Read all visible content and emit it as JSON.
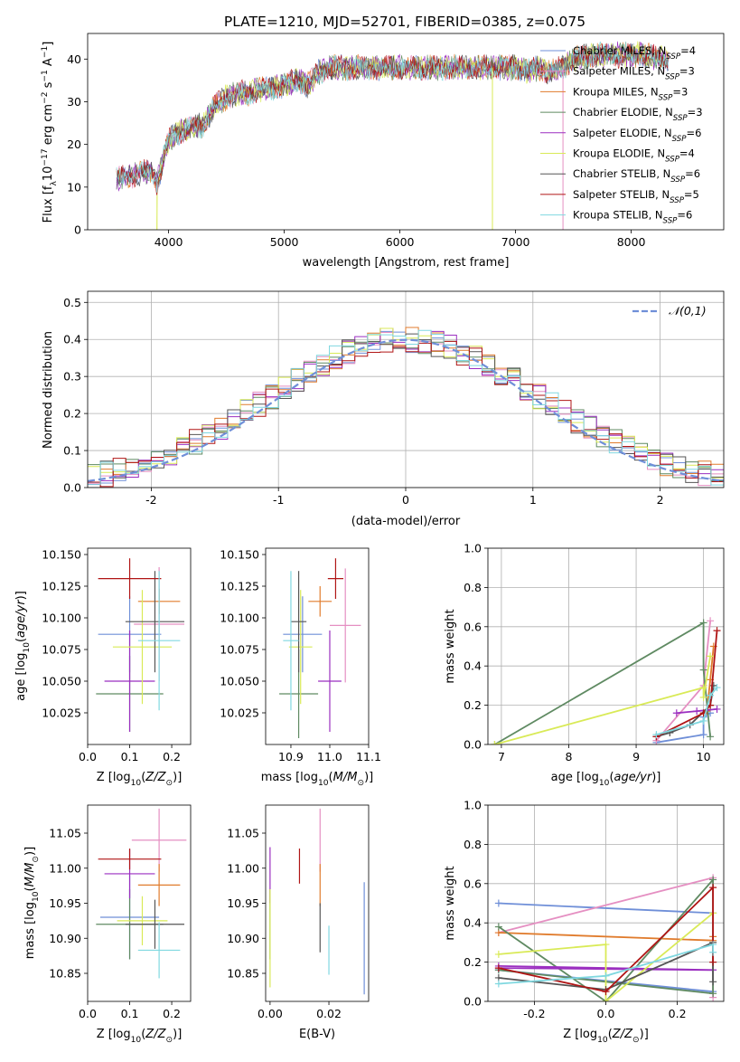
{
  "figure_title": "PLATE=1210, MJD=52701, FIBERID=0385, z=0.075",
  "colors": {
    "Chabrier MILES": "#6f8fd8",
    "Salpeter MILES": "#e58fc2",
    "Kroupa MILES": "#e07b2c",
    "Chabrier ELODIE": "#5f8a62",
    "Salpeter ELODIE": "#9b2fc0",
    "Kroupa ELODIE": "#d9ea57",
    "Chabrier STELIB": "#555555",
    "Salpeter STELIB": "#b01515",
    "Kroupa STELIB": "#80d8e0"
  },
  "chart_data": [
    {
      "id": "spectrum",
      "type": "line",
      "title": "PLATE=1210, MJD=52701, FIBERID=0385, z=0.075",
      "xlabel": "wavelength [Angstrom, rest frame]",
      "ylabel": "Flux [f_λ10^-17 erg cm^-2 s^-1 A^-1]",
      "xlim": [
        3300,
        8800
      ],
      "ylim": [
        0,
        46
      ],
      "xticks": [
        4000,
        5000,
        6000,
        7000,
        8000
      ],
      "yticks": [
        0,
        10,
        20,
        30,
        40
      ],
      "grid": false,
      "legend_position": "top-right",
      "series": [
        {
          "name": "Chabrier MILES",
          "label_main": "Chabrier MILES, N",
          "label_sub": "SSP",
          "label_end": "=4"
        },
        {
          "name": "Salpeter MILES",
          "label_main": "Salpeter MILES, N",
          "label_sub": "SSP",
          "label_end": "=3"
        },
        {
          "name": "Kroupa MILES",
          "label_main": "Kroupa MILES, N",
          "label_sub": "SSP",
          "label_end": "=3"
        },
        {
          "name": "Chabrier ELODIE",
          "label_main": "Chabrier ELODIE, N",
          "label_sub": "SSP",
          "label_end": "=3"
        },
        {
          "name": "Salpeter ELODIE",
          "label_main": "Salpeter ELODIE, N",
          "label_sub": "SSP",
          "label_end": "=6"
        },
        {
          "name": "Kroupa ELODIE",
          "label_main": "Kroupa ELODIE, N",
          "label_sub": "SSP",
          "label_end": "=4"
        },
        {
          "name": "Chabrier STELIB",
          "label_main": "Chabrier STELIB, N",
          "label_sub": "SSP",
          "label_end": "=6"
        },
        {
          "name": "Salpeter STELIB",
          "label_main": "Salpeter STELIB, N",
          "label_sub": "SSP",
          "label_end": "=5"
        },
        {
          "name": "Kroupa STELIB",
          "label_main": "Kroupa STELIB, N",
          "label_sub": "SSP",
          "label_end": "=6"
        }
      ],
      "continuum": [
        [
          3550,
          12
        ],
        [
          3650,
          12.5
        ],
        [
          3750,
          13
        ],
        [
          3850,
          14
        ],
        [
          3900,
          11
        ],
        [
          3950,
          16
        ],
        [
          4000,
          21
        ],
        [
          4100,
          23
        ],
        [
          4200,
          24
        ],
        [
          4300,
          24.5
        ],
        [
          4400,
          29
        ],
        [
          4500,
          31
        ],
        [
          4600,
          32
        ],
        [
          4700,
          32
        ],
        [
          4800,
          33
        ],
        [
          4900,
          33
        ],
        [
          5000,
          34
        ],
        [
          5100,
          35
        ],
        [
          5200,
          34
        ],
        [
          5300,
          37
        ],
        [
          5400,
          38
        ],
        [
          5500,
          38
        ],
        [
          5600,
          38
        ],
        [
          5700,
          38
        ],
        [
          5800,
          38
        ],
        [
          5900,
          38
        ],
        [
          6000,
          38
        ],
        [
          6100,
          38
        ],
        [
          6200,
          38
        ],
        [
          6300,
          38
        ],
        [
          6400,
          38
        ],
        [
          6500,
          38
        ],
        [
          6600,
          38
        ],
        [
          6700,
          38
        ],
        [
          6800,
          38
        ],
        [
          6900,
          38
        ],
        [
          7000,
          38
        ],
        [
          7100,
          37
        ],
        [
          7200,
          38
        ],
        [
          7300,
          37
        ],
        [
          7400,
          38
        ],
        [
          7500,
          40
        ],
        [
          7700,
          41
        ],
        [
          7900,
          41
        ],
        [
          8100,
          41
        ],
        [
          8300,
          40
        ]
      ],
      "cutoffs": [
        {
          "series": "Kroupa ELODIE",
          "x_from": 3900,
          "x_to": 6800
        },
        {
          "series": "Salpeter MILES",
          "x_from": 3550,
          "x_to": 7410
        }
      ]
    },
    {
      "id": "residuals",
      "type": "line",
      "xlabel": "(data-model)/error",
      "ylabel": "Normed distribution",
      "xlim": [
        -2.5,
        2.5
      ],
      "ylim": [
        0,
        0.53
      ],
      "xticks": [
        -2,
        -1,
        0,
        1,
        2
      ],
      "yticks": [
        0.0,
        0.1,
        0.2,
        0.3,
        0.4,
        0.5
      ],
      "grid": true,
      "legend_position": "top-right",
      "reference_label": "𝒩(0,1)",
      "reference_mean": 0,
      "reference_sigma": 1,
      "bin_width": 0.1,
      "x_start": -2.5
    },
    {
      "id": "age_vs_Z",
      "type": "errorbar",
      "xlabel": "Z [log10(Z/Z⊙)]",
      "ylabel": "age  [log10(age/yr)]",
      "xlim": [
        0.0,
        0.245
      ],
      "ylim": [
        10.0,
        10.155
      ],
      "xticks": [
        0.0,
        0.1,
        0.2
      ],
      "yticks": [
        10.025,
        10.05,
        10.075,
        10.1,
        10.125,
        10.15
      ],
      "points": [
        {
          "series": "Chabrier MILES",
          "x": 0.1,
          "xerr": 0.075,
          "y": 10.087,
          "yerr": 0.03
        },
        {
          "series": "Salpeter MILES",
          "x": 0.17,
          "xerr": 0.06,
          "y": 10.095,
          "yerr": 0.045
        },
        {
          "series": "Kroupa MILES",
          "x": 0.17,
          "xerr": 0.05,
          "y": 10.113,
          "yerr": 0.01
        },
        {
          "series": "Chabrier ELODIE",
          "x": 0.1,
          "xerr": 0.08,
          "y": 10.04,
          "yerr": 0.03
        },
        {
          "series": "Salpeter ELODIE",
          "x": 0.1,
          "xerr": 0.06,
          "y": 10.05,
          "yerr": 0.04
        },
        {
          "series": "Kroupa ELODIE",
          "x": 0.13,
          "xerr": 0.07,
          "y": 10.077,
          "yerr": 0.045
        },
        {
          "series": "Chabrier STELIB",
          "x": 0.16,
          "xerr": 0.07,
          "y": 10.097,
          "yerr": 0.04
        },
        {
          "series": "Salpeter STELIB",
          "x": 0.1,
          "xerr": 0.075,
          "y": 10.131,
          "yerr": 0.016
        },
        {
          "series": "Kroupa STELIB",
          "x": 0.17,
          "xerr": 0.05,
          "y": 10.082,
          "yerr": 0.055
        }
      ]
    },
    {
      "id": "age_vs_mass",
      "type": "errorbar",
      "xlabel": "mass [log10(M/M⊙)]",
      "ylabel": "",
      "xlim": [
        10.835,
        11.1
      ],
      "ylim": [
        10.0,
        10.155
      ],
      "xticks": [
        10.9,
        11.0,
        11.1
      ],
      "yticks": [
        10.025,
        10.05,
        10.075,
        10.1,
        10.125,
        10.15
      ],
      "points": [
        {
          "series": "Chabrier MILES",
          "x": 10.93,
          "xerr": 0.05,
          "y": 10.087,
          "yerr": 0.03
        },
        {
          "series": "Salpeter MILES",
          "x": 11.04,
          "xerr": 0.04,
          "y": 10.094,
          "yerr": 0.045
        },
        {
          "series": "Kroupa MILES",
          "x": 10.975,
          "xerr": 0.03,
          "y": 10.113,
          "yerr": 0.012
        },
        {
          "series": "Chabrier ELODIE",
          "x": 10.92,
          "xerr": 0.05,
          "y": 10.04,
          "yerr": 0.035
        },
        {
          "series": "Salpeter ELODIE",
          "x": 11.0,
          "xerr": 0.03,
          "y": 10.05,
          "yerr": 0.04
        },
        {
          "series": "Kroupa ELODIE",
          "x": 10.925,
          "xerr": 0.03,
          "y": 10.077,
          "yerr": 0.045
        },
        {
          "series": "Chabrier STELIB",
          "x": 10.92,
          "xerr": 0.02,
          "y": 10.097,
          "yerr": 0.04
        },
        {
          "series": "Salpeter STELIB",
          "x": 11.015,
          "xerr": 0.02,
          "y": 10.131,
          "yerr": 0.016
        },
        {
          "series": "Kroupa STELIB",
          "x": 10.9,
          "xerr": 0.02,
          "y": 10.082,
          "yerr": 0.055
        }
      ]
    },
    {
      "id": "massweight_vs_age",
      "type": "line",
      "xlabel": "age  [log10(age/yr)]",
      "ylabel": "mass weight",
      "xlim": [
        6.8,
        10.3
      ],
      "ylim": [
        0.0,
        1.0
      ],
      "xticks": [
        7,
        8,
        9,
        10
      ],
      "yticks": [
        0.0,
        0.2,
        0.4,
        0.6,
        0.8,
        1.0
      ],
      "grid": true,
      "series": [
        {
          "series": "Chabrier MILES",
          "points": [
            [
              9.3,
              0.01
            ],
            [
              10.0,
              0.05
            ],
            [
              10.0,
              0.14
            ],
            [
              10.1,
              0.16
            ]
          ]
        },
        {
          "series": "Salpeter MILES",
          "points": [
            [
              9.3,
              0.02
            ],
            [
              10.0,
              0.3
            ],
            [
              10.1,
              0.63
            ]
          ]
        },
        {
          "series": "Kroupa MILES",
          "points": [
            [
              10.05,
              0.17
            ],
            [
              10.1,
              0.33
            ],
            [
              10.15,
              0.5
            ]
          ]
        },
        {
          "series": "Chabrier ELODIE",
          "points": [
            [
              6.9,
              0.0
            ],
            [
              10.0,
              0.62
            ],
            [
              10.0,
              0.38
            ],
            [
              10.1,
              0.04
            ]
          ]
        },
        {
          "series": "Salpeter ELODIE",
          "points": [
            [
              9.6,
              0.16
            ],
            [
              9.9,
              0.17
            ],
            [
              10.2,
              0.18
            ]
          ]
        },
        {
          "series": "Kroupa ELODIE",
          "points": [
            [
              6.9,
              0.0
            ],
            [
              10.0,
              0.29
            ],
            [
              10.0,
              0.24
            ],
            [
              10.1,
              0.45
            ]
          ]
        },
        {
          "series": "Chabrier STELIB",
          "points": [
            [
              9.3,
              0.04
            ],
            [
              9.5,
              0.06
            ],
            [
              9.8,
              0.1
            ],
            [
              10.1,
              0.2
            ],
            [
              10.15,
              0.3
            ]
          ]
        },
        {
          "series": "Salpeter STELIB",
          "points": [
            [
              9.3,
              0.04
            ],
            [
              10.0,
              0.16
            ],
            [
              10.1,
              0.2
            ],
            [
              10.2,
              0.58
            ]
          ]
        },
        {
          "series": "Kroupa STELIB",
          "points": [
            [
              9.3,
              0.05
            ],
            [
              10.0,
              0.12
            ],
            [
              10.1,
              0.25
            ],
            [
              10.2,
              0.29
            ]
          ]
        }
      ]
    },
    {
      "id": "mass_vs_Z",
      "type": "errorbar",
      "xlabel": "Z [log10(Z/Z⊙)]",
      "ylabel": "mass [log10(M/M⊙)]",
      "xlim": [
        0.0,
        0.245
      ],
      "ylim": [
        10.81,
        11.09
      ],
      "xticks": [
        0.0,
        0.1,
        0.2
      ],
      "yticks": [
        10.85,
        10.9,
        10.95,
        11.0,
        11.05
      ],
      "points": [
        {
          "series": "Chabrier MILES",
          "x": 0.1,
          "xerr": 0.07,
          "y": 10.93,
          "yerr": 0.06
        },
        {
          "series": "Salpeter MILES",
          "x": 0.17,
          "xerr": 0.065,
          "y": 11.04,
          "yerr": 0.045
        },
        {
          "series": "Kroupa MILES",
          "x": 0.17,
          "xerr": 0.05,
          "y": 10.976,
          "yerr": 0.03
        },
        {
          "series": "Chabrier ELODIE",
          "x": 0.1,
          "xerr": 0.08,
          "y": 10.92,
          "yerr": 0.05
        },
        {
          "series": "Salpeter ELODIE",
          "x": 0.1,
          "xerr": 0.06,
          "y": 10.992,
          "yerr": 0.035
        },
        {
          "series": "Kroupa ELODIE",
          "x": 0.13,
          "xerr": 0.06,
          "y": 10.925,
          "yerr": 0.035
        },
        {
          "series": "Chabrier STELIB",
          "x": 0.16,
          "xerr": 0.07,
          "y": 10.92,
          "yerr": 0.035
        },
        {
          "series": "Salpeter STELIB",
          "x": 0.1,
          "xerr": 0.075,
          "y": 11.013,
          "yerr": 0.015
        },
        {
          "series": "Kroupa STELIB",
          "x": 0.17,
          "xerr": 0.05,
          "y": 10.883,
          "yerr": 0.04
        }
      ]
    },
    {
      "id": "mass_vs_EBV",
      "type": "errorbar",
      "xlabel": "E(B-V)",
      "ylabel": "",
      "xlim": [
        -0.0015,
        0.0335
      ],
      "ylim": [
        10.81,
        11.09
      ],
      "xticks": [
        0.0,
        0.02
      ],
      "xtick_labels": [
        "0.00",
        "0.02"
      ],
      "yticks": [
        10.85,
        10.9,
        10.95,
        11.0,
        11.05
      ],
      "points": [
        {
          "series": "Chabrier MILES",
          "x": 0.032,
          "y": 10.9,
          "yerr": 0.08
        },
        {
          "series": "Salpeter MILES",
          "x": 0.017,
          "y": 11.04,
          "yerr": 0.045
        },
        {
          "series": "Kroupa MILES",
          "x": 0.017,
          "y": 10.976,
          "yerr": 0.03
        },
        {
          "series": "Chabrier ELODIE",
          "x": 0.0,
          "y": 10.92,
          "yerr": 0.05
        },
        {
          "series": "Salpeter ELODIE",
          "x": 0.0,
          "y": 10.99,
          "yerr": 0.04
        },
        {
          "series": "Kroupa ELODIE",
          "x": 0.0,
          "y": 10.9,
          "yerr": 0.07
        },
        {
          "series": "Chabrier STELIB",
          "x": 0.017,
          "y": 10.915,
          "yerr": 0.035
        },
        {
          "series": "Salpeter STELIB",
          "x": 0.01,
          "y": 11.003,
          "yerr": 0.025
        },
        {
          "series": "Kroupa STELIB",
          "x": 0.02,
          "y": 10.883,
          "yerr": 0.035
        }
      ]
    },
    {
      "id": "massweight_vs_Z",
      "type": "line",
      "xlabel": "Z [log10(Z/Z⊙)]",
      "ylabel": "mass weight",
      "xlim": [
        -0.33,
        0.33
      ],
      "ylim": [
        0.0,
        1.0
      ],
      "xticks": [
        -0.2,
        0.0,
        0.2
      ],
      "yticks": [
        0.0,
        0.2,
        0.4,
        0.6,
        0.8,
        1.0
      ],
      "grid": true,
      "series": [
        {
          "series": "Chabrier MILES",
          "points": [
            [
              -0.3,
              0.5
            ],
            [
              0.3,
              0.45
            ],
            [
              0.3,
              0.05
            ],
            [
              -0.3,
              0.16
            ]
          ]
        },
        {
          "series": "Salpeter MILES",
          "points": [
            [
              -0.3,
              0.35
            ],
            [
              0.3,
              0.63
            ],
            [
              0.3,
              0.02
            ]
          ]
        },
        {
          "series": "Kroupa MILES",
          "points": [
            [
              -0.3,
              0.35
            ],
            [
              0.3,
              0.31
            ],
            [
              0.3,
              0.33
            ]
          ]
        },
        {
          "series": "Chabrier ELODIE",
          "points": [
            [
              -0.3,
              0.38
            ],
            [
              0.0,
              0.0
            ],
            [
              0.3,
              0.62
            ],
            [
              0.3,
              0.04
            ],
            [
              -0.3,
              0.16
            ]
          ]
        },
        {
          "series": "Salpeter ELODIE",
          "points": [
            [
              -0.3,
              0.17
            ],
            [
              0.3,
              0.16
            ],
            [
              -0.3,
              0.18
            ]
          ]
        },
        {
          "series": "Kroupa ELODIE",
          "points": [
            [
              -0.3,
              0.24
            ],
            [
              0.0,
              0.29
            ],
            [
              0.0,
              0.0
            ],
            [
              0.3,
              0.45
            ]
          ]
        },
        {
          "series": "Chabrier STELIB",
          "points": [
            [
              -0.3,
              0.12
            ],
            [
              0.0,
              0.06
            ],
            [
              0.3,
              0.3
            ],
            [
              0.3,
              0.1
            ]
          ]
        },
        {
          "series": "Salpeter STELIB",
          "points": [
            [
              -0.3,
              0.17
            ],
            [
              0.0,
              0.05
            ],
            [
              0.3,
              0.58
            ],
            [
              0.3,
              0.2
            ]
          ]
        },
        {
          "series": "Kroupa STELIB",
          "points": [
            [
              -0.3,
              0.09
            ],
            [
              0.0,
              0.13
            ],
            [
              0.3,
              0.29
            ],
            [
              0.3,
              0.25
            ]
          ]
        }
      ]
    }
  ]
}
